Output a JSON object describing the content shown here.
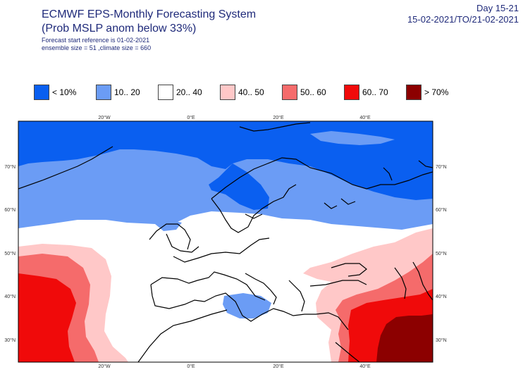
{
  "header": {
    "title_line1": "ECMWF EPS-Monthly Forecasting System",
    "title_line2": "(Prob MSLP anom below 33%)",
    "subtitle_line1": "Forecast start reference is 01-02-2021",
    "subtitle_line2": "ensemble size = 51  ,climate size = 660",
    "period_label": "Day 15-21",
    "date_range": "15-02-2021/TO/21-02-2021"
  },
  "legend": [
    {
      "label": "< 10%",
      "color": "#0a5ff0"
    },
    {
      "label": "10.. 20",
      "color": "#6b9cf5"
    },
    {
      "label": "20.. 40",
      "color": "#ffffff"
    },
    {
      "label": "40.. 50",
      "color": "#ffc8c8"
    },
    {
      "label": "50.. 60",
      "color": "#f56b6b"
    },
    {
      "label": "60.. 70",
      "color": "#f00a0a"
    },
    {
      "label": "> 70%",
      "color": "#8c0000"
    }
  ],
  "map": {
    "lon_labels": [
      "20°W",
      "0°E",
      "20°E",
      "40°E"
    ],
    "lat_labels": [
      "70°N",
      "60°N",
      "50°N",
      "40°N",
      "30°N"
    ]
  }
}
